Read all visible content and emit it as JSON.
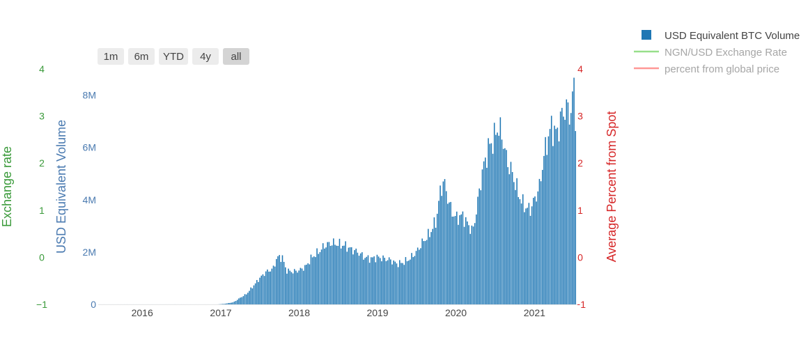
{
  "range_selector": {
    "buttons": [
      {
        "label": "1m",
        "active": false
      },
      {
        "label": "6m",
        "active": false
      },
      {
        "label": "YTD",
        "active": false
      },
      {
        "label": "4y",
        "active": false
      },
      {
        "label": "all",
        "active": true
      }
    ]
  },
  "colors": {
    "bars": "#1f77b4",
    "exchange_axis": "#3a9a3a",
    "volume_axis": "#4a7ab0",
    "percent_axis": "#d62728",
    "exchange_line": "#98df8a",
    "percent_line": "#ff9896"
  },
  "chart_data": {
    "type": "bar",
    "title": "",
    "series": [
      {
        "name": "USD Equivalent BTC Volume",
        "type": "bar",
        "axis": "volume",
        "visible": true
      },
      {
        "name": "NGN/USD Exchange Rate",
        "type": "line",
        "axis": "exchange",
        "visible": false
      },
      {
        "name": "percent from global price",
        "type": "line",
        "axis": "percent",
        "visible": false
      }
    ],
    "x_axis": {
      "type": "date",
      "ticks": [
        "2016",
        "2017",
        "2018",
        "2019",
        "2020",
        "2021"
      ],
      "range": [
        "2015-06-10",
        "2021-07-20"
      ]
    },
    "y_axes": {
      "exchange": {
        "label": "Exchange rate",
        "range": [
          -1,
          4
        ],
        "ticks": [
          "−1",
          "0",
          "1",
          "2",
          "3",
          "4"
        ]
      },
      "volume": {
        "label": "USD Equivalent Volume",
        "range": [
          0,
          9000000
        ],
        "ticks": [
          "0",
          "2M",
          "4M",
          "6M",
          "8M"
        ]
      },
      "percent": {
        "label": "Average Percent from Spot",
        "range": [
          -1,
          4
        ],
        "ticks": [
          "−1",
          "0",
          "1",
          "2",
          "3",
          "4"
        ]
      }
    },
    "volume_anchors": [
      [
        "2015-06-10",
        0
      ],
      [
        "2016-12-15",
        0
      ],
      [
        "2017-01-15",
        20000
      ],
      [
        "2017-03-01",
        80000
      ],
      [
        "2017-04-01",
        250000
      ],
      [
        "2017-05-01",
        400000
      ],
      [
        "2017-06-01",
        700000
      ],
      [
        "2017-07-01",
        1000000
      ],
      [
        "2017-08-01",
        1250000
      ],
      [
        "2017-09-01",
        1350000
      ],
      [
        "2017-09-20",
        1800000
      ],
      [
        "2017-10-15",
        1800000
      ],
      [
        "2017-11-01",
        1300000
      ],
      [
        "2017-12-01",
        1250000
      ],
      [
        "2018-01-01",
        1300000
      ],
      [
        "2018-02-01",
        1450000
      ],
      [
        "2018-03-01",
        1800000
      ],
      [
        "2018-04-01",
        2000000
      ],
      [
        "2018-05-01",
        2250000
      ],
      [
        "2018-06-01",
        2350000
      ],
      [
        "2018-07-01",
        2300000
      ],
      [
        "2018-08-01",
        2250000
      ],
      [
        "2018-09-01",
        2100000
      ],
      [
        "2018-10-01",
        2000000
      ],
      [
        "2018-11-01",
        1800000
      ],
      [
        "2018-12-01",
        1750000
      ],
      [
        "2019-01-01",
        1800000
      ],
      [
        "2019-02-01",
        1750000
      ],
      [
        "2019-03-01",
        1700000
      ],
      [
        "2019-04-01",
        1550000
      ],
      [
        "2019-05-01",
        1600000
      ],
      [
        "2019-06-01",
        1750000
      ],
      [
        "2019-07-01",
        2000000
      ],
      [
        "2019-08-01",
        2400000
      ],
      [
        "2019-09-01",
        2700000
      ],
      [
        "2019-10-01",
        3200000
      ],
      [
        "2019-10-20",
        4300000
      ],
      [
        "2019-11-05",
        4750000
      ],
      [
        "2019-11-20",
        4200000
      ],
      [
        "2019-12-10",
        3600000
      ],
      [
        "2020-01-01",
        3300000
      ],
      [
        "2020-02-01",
        3400000
      ],
      [
        "2020-03-01",
        3000000
      ],
      [
        "2020-03-20",
        2800000
      ],
      [
        "2020-04-10",
        3800000
      ],
      [
        "2020-05-01",
        5000000
      ],
      [
        "2020-06-01",
        6000000
      ],
      [
        "2020-06-25",
        6300000
      ],
      [
        "2020-07-15",
        6800000
      ],
      [
        "2020-08-05",
        6400000
      ],
      [
        "2020-08-25",
        5500000
      ],
      [
        "2020-09-20",
        5000000
      ],
      [
        "2020-10-15",
        4300000
      ],
      [
        "2020-11-10",
        3800000
      ],
      [
        "2020-12-10",
        3600000
      ],
      [
        "2021-01-01",
        4000000
      ],
      [
        "2021-01-25",
        4500000
      ],
      [
        "2021-02-10",
        5500000
      ],
      [
        "2021-02-28",
        6200000
      ],
      [
        "2021-03-20",
        6800000
      ],
      [
        "2021-04-15",
        6500000
      ],
      [
        "2021-05-10",
        7300000
      ],
      [
        "2021-06-01",
        7500000
      ],
      [
        "2021-06-20",
        7300000
      ],
      [
        "2021-07-05",
        8500000
      ],
      [
        "2021-07-10",
        7300000
      ]
    ]
  }
}
